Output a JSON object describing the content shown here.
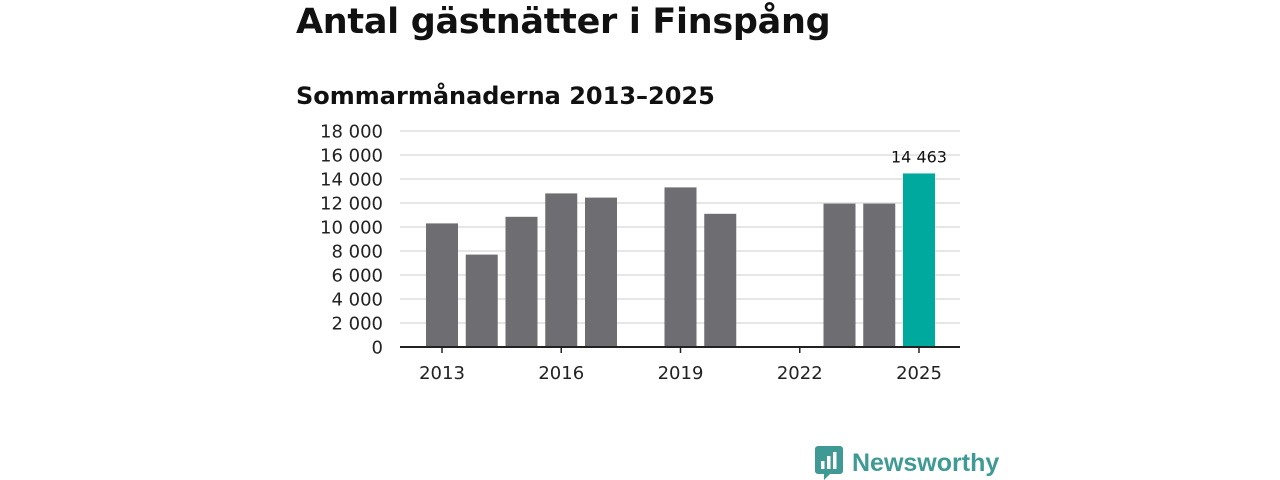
{
  "chart_data": {
    "type": "bar",
    "title": "Antal gästnätter i Finspång",
    "subtitle": "Sommarmånaderna 2013–2025",
    "x": [
      2013,
      2014,
      2015,
      2016,
      2017,
      2018,
      2019,
      2020,
      2021,
      2022,
      2023,
      2024,
      2025
    ],
    "values": [
      10300,
      7700,
      10850,
      12800,
      12450,
      null,
      13300,
      11100,
      null,
      null,
      11950,
      11950,
      14463
    ],
    "x_ticks": [
      "2013",
      "2016",
      "2019",
      "2022",
      "2025"
    ],
    "y_ticks": [
      "0",
      "2 000",
      "4 000",
      "6 000",
      "8 000",
      "10 000",
      "12 000",
      "14 000",
      "16 000",
      "18 000"
    ],
    "ylim": [
      0,
      18000
    ],
    "grid": true,
    "bar_color": "#6e6d72",
    "highlight_color": "#00a99d",
    "highlight_year": 2025,
    "annotation": {
      "year": 2025,
      "text": "14 463"
    }
  },
  "brand": {
    "name": "Newsworthy",
    "icon": "newsworthy-logo-icon",
    "color": "#3f9a95"
  }
}
